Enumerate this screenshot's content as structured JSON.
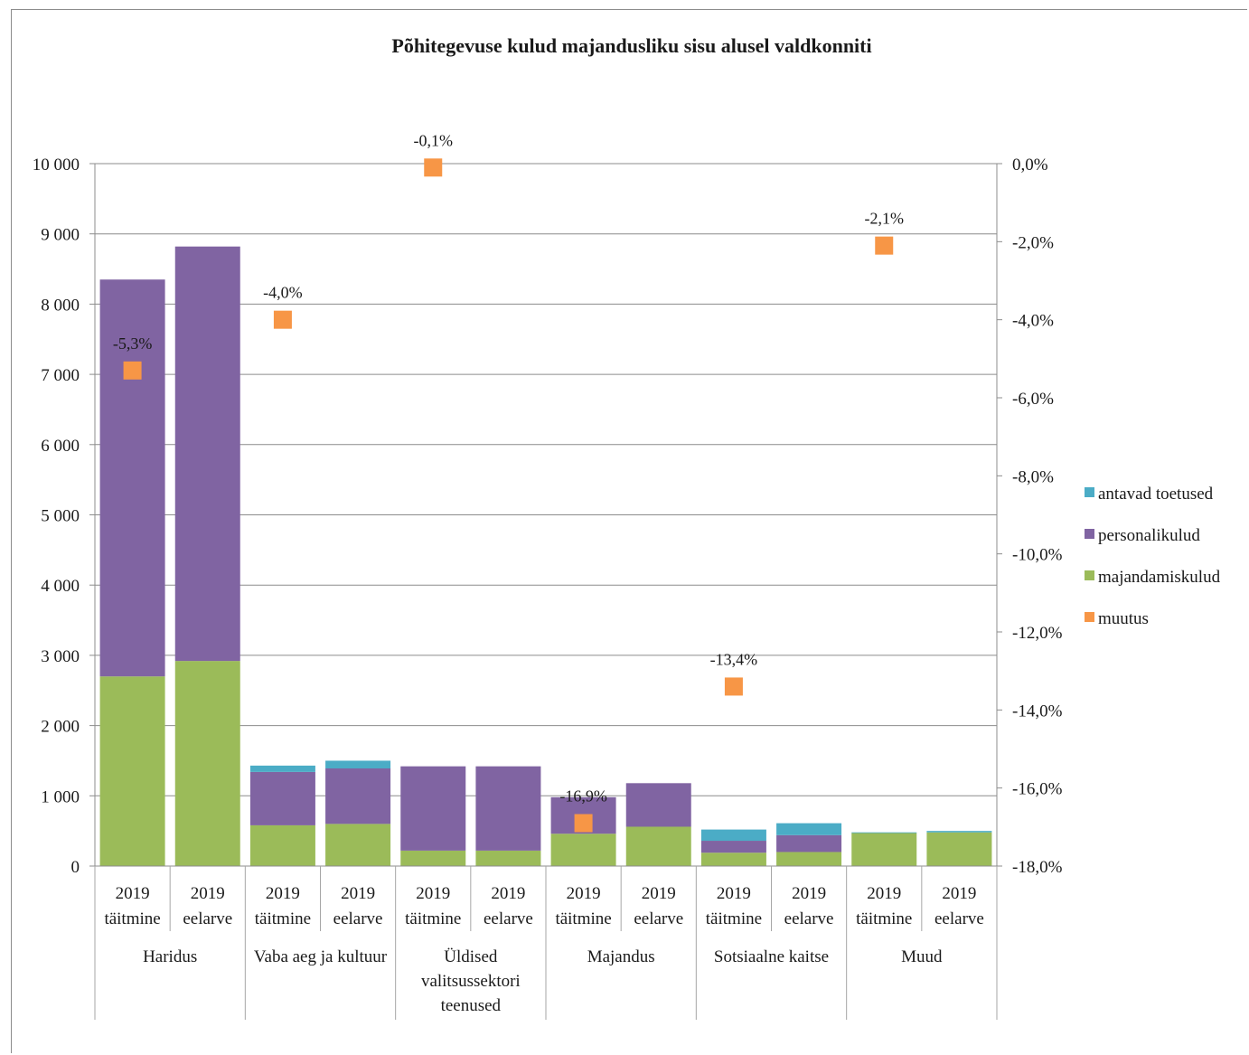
{
  "chart_data": {
    "type": "bar",
    "title": "Põhitegevuse kulud majandusliku sisu alusel valdkonniti",
    "stacked": true,
    "groups": [
      "Haridus",
      "Vaba aeg ja kultuur",
      "Üldised valitsussektori teenused",
      "Majandus",
      "Sotsiaalne kaitse",
      "Muud"
    ],
    "category_year": "2019",
    "category_kinds": [
      "täitmine",
      "eelarve"
    ],
    "y_left": {
      "min": 0,
      "max": 10000,
      "step": 1000,
      "tick_labels": [
        "0",
        "1 000",
        "2 000",
        "3 000",
        "4 000",
        "5 000",
        "6 000",
        "7 000",
        "8 000",
        "9 000",
        "10 000"
      ]
    },
    "y_right": {
      "min": -18,
      "max": 0,
      "step": 2,
      "tick_labels": [
        "-18,0%",
        "-16,0%",
        "-14,0%",
        "-12,0%",
        "-10,0%",
        "-8,0%",
        "-6,0%",
        "-4,0%",
        "-2,0%",
        "0,0%"
      ]
    },
    "grid": true,
    "legend_position": "right",
    "series": [
      {
        "name": "majandamiskulud",
        "color": "#9bbb59",
        "values": [
          2700,
          2920,
          580,
          600,
          220,
          220,
          460,
          560,
          190,
          200,
          470,
          480
        ]
      },
      {
        "name": "personalikulud",
        "color": "#8064a2",
        "values": [
          5650,
          5900,
          760,
          790,
          1200,
          1200,
          520,
          620,
          170,
          240,
          0,
          0
        ]
      },
      {
        "name": "antavad toetused",
        "color": "#4bacc6",
        "values": [
          0,
          0,
          90,
          110,
          0,
          0,
          0,
          0,
          160,
          170,
          10,
          20
        ]
      }
    ],
    "muutus": {
      "name": "muutus",
      "color": "#f79646",
      "values": [
        -5.3,
        -4.0,
        -0.1,
        -16.9,
        -13.4,
        -2.1
      ],
      "labels": [
        "-5,3%",
        "-4,0%",
        "-0,1%",
        "-16,9%",
        "-13,4%",
        "-2,1%"
      ]
    },
    "legend": [
      "antavad toetused",
      "personalikulud",
      "majandamiskulud",
      "muutus"
    ]
  }
}
